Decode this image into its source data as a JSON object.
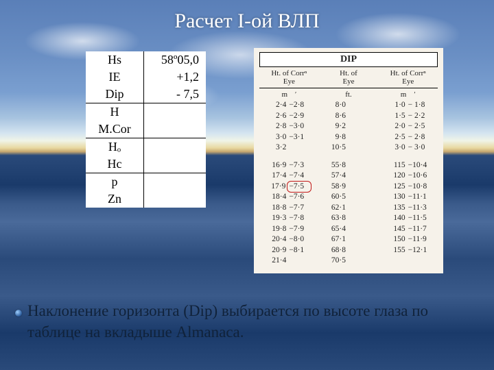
{
  "title": "Расчет I-ой ВЛП",
  "bullet": "Наклонение горизонта (Dip) выбирается по высоте глаза по таблице на вкладыше Almanaca.",
  "left_table": {
    "rows": [
      {
        "label": "Hs",
        "value": "58º05,0"
      },
      {
        "label": "IE",
        "value": "+1,2"
      },
      {
        "label": "Dip",
        "value": "- 7,5"
      },
      {
        "label": "H",
        "value": ""
      },
      {
        "label": "M.Cor",
        "value": ""
      },
      {
        "label": "Hₒ",
        "value": ""
      },
      {
        "label": "Hc",
        "value": ""
      },
      {
        "label": "p",
        "value": ""
      },
      {
        "label": "Zn",
        "value": ""
      }
    ],
    "separators_after": [
      2,
      4,
      6
    ]
  },
  "dip": {
    "title": "DIP",
    "head": [
      {
        "a": "Ht. of",
        "b": "Eye",
        "c": "Corrⁿ"
      },
      {
        "a": "Ht. of",
        "b": "Eye",
        "c": ""
      },
      {
        "a": "Ht. of",
        "b": "Eye",
        "c": "Corrⁿ"
      }
    ],
    "units": [
      "m",
      "ft.",
      "m"
    ],
    "prime_cols": [
      true,
      false,
      true
    ],
    "block1": {
      "col1": [
        [
          "2·4",
          "−2·8"
        ],
        [
          "2·6",
          "−2·9"
        ],
        [
          "2·8",
          "−3·0"
        ],
        [
          "3·0",
          "−3·1"
        ],
        [
          "3·2",
          ""
        ]
      ],
      "col2": [
        [
          "8·0",
          ""
        ],
        [
          "8·6",
          ""
        ],
        [
          "9·2",
          ""
        ],
        [
          "9·8",
          ""
        ],
        [
          "10·5",
          ""
        ]
      ],
      "col3": [
        [
          "1·0",
          "− 1·8"
        ],
        [
          "1·5",
          "− 2·2"
        ],
        [
          "2·0",
          "− 2·5"
        ],
        [
          "2·5",
          "− 2·8"
        ],
        [
          "3·0",
          "− 3·0"
        ]
      ]
    },
    "block2": {
      "col1": [
        [
          "16·9",
          "−7·3"
        ],
        [
          "17·4",
          "−7·4"
        ],
        [
          "17·9",
          "−7·5"
        ],
        [
          "18·4",
          "−7·6"
        ],
        [
          "18·8",
          "−7·7"
        ],
        [
          "19·3",
          "−7·8"
        ],
        [
          "19·8",
          "−7·9"
        ],
        [
          "20·4",
          "−8·0"
        ],
        [
          "20·9",
          "−8·1"
        ],
        [
          "21·4",
          ""
        ]
      ],
      "col2": [
        [
          "55·8",
          ""
        ],
        [
          "57·4",
          ""
        ],
        [
          "58·9",
          ""
        ],
        [
          "60·5",
          ""
        ],
        [
          "62·1",
          ""
        ],
        [
          "63·8",
          ""
        ],
        [
          "65·4",
          ""
        ],
        [
          "67·1",
          ""
        ],
        [
          "68·8",
          ""
        ],
        [
          "70·5",
          ""
        ]
      ],
      "col3": [
        [
          "115",
          "−10·4"
        ],
        [
          "120",
          "−10·6"
        ],
        [
          "125",
          "−10·8"
        ],
        [
          "",
          ""
        ],
        [
          "130",
          "−11·1"
        ],
        [
          "135",
          "−11·3"
        ],
        [
          "140",
          "−11·5"
        ],
        [
          "145",
          "−11·7"
        ],
        [
          "150",
          "−11·9"
        ],
        [
          "155",
          "−12·1"
        ]
      ]
    },
    "circled": {
      "block": 2,
      "col": 1,
      "row": 2
    }
  },
  "colors": {
    "card": "#f6f2ea",
    "circle": "#c01818"
  }
}
